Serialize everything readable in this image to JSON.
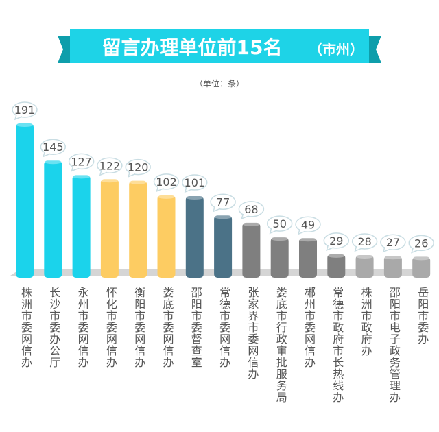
{
  "banner": {
    "title": "留言办理单位前15名",
    "title_suffix": "（市州）"
  },
  "unit_note": "（单位：条）",
  "colors": {
    "banner": "#1ED3E7",
    "banner_dark": "#0E9EAB",
    "cyan": "#1BD3EB",
    "yellow": "#FDCC62",
    "teal": "#4B7287",
    "gray": "#7F7F7F",
    "light_gray": "#A9A9A9",
    "floor": "#D5D5D5"
  },
  "chart_data": {
    "type": "bar",
    "title": "留言办理单位前15名（市州）",
    "unit": "（单位：条）",
    "categories": [
      "株洲市委网信办",
      "长沙市委办公厅",
      "永州市委网信办",
      "怀化市委网信办",
      "衡阳市委网信办",
      "娄底市委网信办",
      "邵阳市委督查室",
      "常德市委网信办",
      "张家界市委网信办",
      "娄底市行政审批服务局",
      "郴州市委网信办",
      "常德市政府市长热线办",
      "株洲市政府办",
      "邵阳市电子政务管理办",
      "岳阳市委办"
    ],
    "values": [
      191,
      145,
      127,
      122,
      120,
      102,
      101,
      77,
      68,
      50,
      49,
      29,
      28,
      27,
      26
    ],
    "bar_colors": [
      "cyan",
      "cyan",
      "cyan",
      "yellow",
      "yellow",
      "yellow",
      "teal",
      "teal",
      "gray",
      "gray",
      "gray",
      "gray",
      "light_gray",
      "light_gray",
      "light_gray"
    ],
    "ylim": [
      0,
      191
    ]
  }
}
